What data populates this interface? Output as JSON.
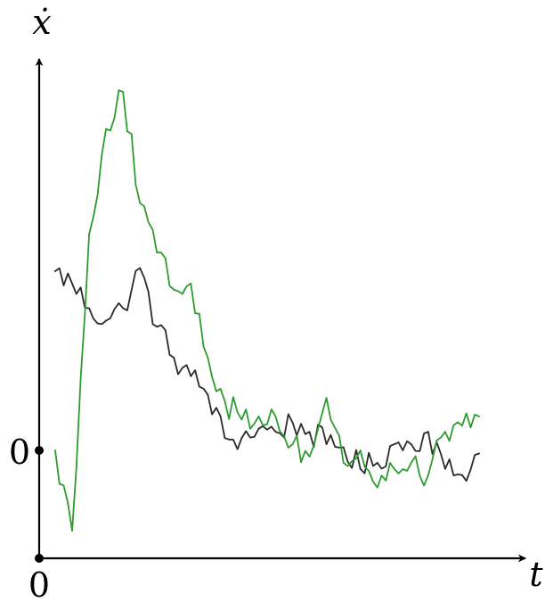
{
  "chart_data": {
    "type": "line",
    "title": "",
    "xlabel": "t",
    "ylabel": "ẋ",
    "x_tick_labels": [
      "0"
    ],
    "y_tick_labels": [
      "0"
    ],
    "xlim": [
      0,
      100
    ],
    "ylim": [
      -1.6,
      6.5
    ],
    "grid": false,
    "legend": "none",
    "colors": {
      "series_1": "#2a2a2a",
      "series_2": "#2e9b2e",
      "axes": "#000000"
    },
    "x": [
      0,
      4,
      8,
      12,
      16,
      20,
      24,
      28,
      32,
      36,
      40,
      44,
      48,
      52,
      56,
      60,
      64,
      68,
      72,
      76,
      80,
      84,
      88,
      92,
      96,
      100
    ],
    "series": [
      {
        "color": "#2a2a2a",
        "values": [
          2.9,
          2.7,
          2.3,
          2.1,
          2.3,
          2.95,
          2.0,
          1.5,
          1.2,
          0.9,
          0.2,
          0.2,
          0.35,
          0.3,
          0.45,
          0.3,
          0.1,
          0.05,
          -0.3,
          -0.2,
          0.1,
          0.1,
          0.3,
          -0.3,
          -0.4,
          -0.05
        ]
      },
      {
        "color": "#2e9b2e",
        "values": [
          0.0,
          -1.3,
          3.5,
          5.2,
          5.8,
          4.0,
          3.2,
          2.6,
          2.7,
          1.5,
          0.8,
          0.5,
          0.55,
          0.55,
          0.1,
          -0.1,
          0.85,
          -0.2,
          0.0,
          -0.6,
          -0.3,
          -0.2,
          -0.4,
          0.3,
          0.4,
          0.55
        ]
      }
    ]
  }
}
